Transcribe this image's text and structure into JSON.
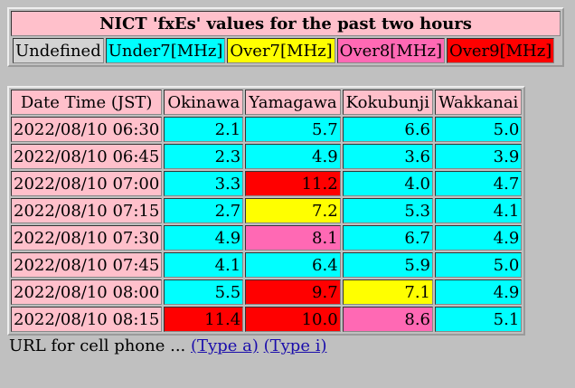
{
  "title": "NICT 'fxEs' values for the past two hours",
  "legend": [
    {
      "label": "Undefined",
      "color": "#d3d3d3"
    },
    {
      "label": "Under7[MHz]",
      "color": "#00ffff"
    },
    {
      "label": "Over7[MHz]",
      "color": "#ffff00"
    },
    {
      "label": "Over8[MHz]",
      "color": "#ff69b4"
    },
    {
      "label": "Over9[MHz]",
      "color": "#ff0000"
    }
  ],
  "table": {
    "header": [
      "Date Time (JST)",
      "Okinawa",
      "Yamagawa",
      "Kokubunji",
      "Wakkanai"
    ],
    "rows": [
      {
        "time": "2022/08/10 06:30",
        "values": [
          "2.1",
          "5.7",
          "6.6",
          "5.0"
        ],
        "colors": [
          "#00ffff",
          "#00ffff",
          "#00ffff",
          "#00ffff"
        ]
      },
      {
        "time": "2022/08/10 06:45",
        "values": [
          "2.3",
          "4.9",
          "3.6",
          "3.9"
        ],
        "colors": [
          "#00ffff",
          "#00ffff",
          "#00ffff",
          "#00ffff"
        ]
      },
      {
        "time": "2022/08/10 07:00",
        "values": [
          "3.3",
          "11.2",
          "4.0",
          "4.7"
        ],
        "colors": [
          "#00ffff",
          "#ff0000",
          "#00ffff",
          "#00ffff"
        ]
      },
      {
        "time": "2022/08/10 07:15",
        "values": [
          "2.7",
          "7.2",
          "5.3",
          "4.1"
        ],
        "colors": [
          "#00ffff",
          "#ffff00",
          "#00ffff",
          "#00ffff"
        ]
      },
      {
        "time": "2022/08/10 07:30",
        "values": [
          "4.9",
          "8.1",
          "6.7",
          "4.9"
        ],
        "colors": [
          "#00ffff",
          "#ff69b4",
          "#00ffff",
          "#00ffff"
        ]
      },
      {
        "time": "2022/08/10 07:45",
        "values": [
          "4.1",
          "6.4",
          "5.9",
          "5.0"
        ],
        "colors": [
          "#00ffff",
          "#00ffff",
          "#00ffff",
          "#00ffff"
        ]
      },
      {
        "time": "2022/08/10 08:00",
        "values": [
          "5.5",
          "9.7",
          "7.1",
          "4.9"
        ],
        "colors": [
          "#00ffff",
          "#ff0000",
          "#ffff00",
          "#00ffff"
        ]
      },
      {
        "time": "2022/08/10 08:15",
        "values": [
          "11.4",
          "10.0",
          "8.6",
          "5.1"
        ],
        "colors": [
          "#ff0000",
          "#ff0000",
          "#ff69b4",
          "#00ffff"
        ]
      }
    ]
  },
  "footer": {
    "text": "URL for cell phone ...",
    "links": [
      "(Type a)",
      "(Type i)"
    ]
  }
}
